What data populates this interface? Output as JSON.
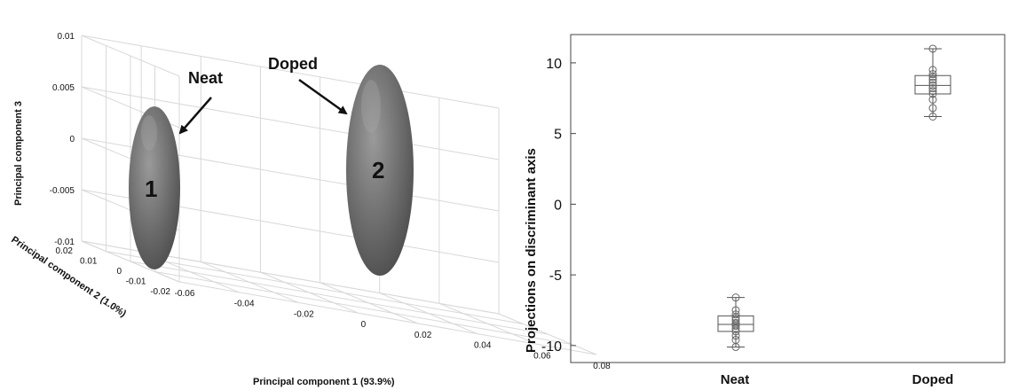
{
  "chart_data": [
    {
      "type": "scatter",
      "subtype": "3d-ellipsoid-pca",
      "xlabel": "Principal component 1 (93.9%)",
      "ylabel": "Principal component 2 (1.0%)",
      "zlabel": "Principal component 3",
      "xticks": [
        "-0.06",
        "-0.04",
        "-0.02",
        "0",
        "0.02",
        "0.04",
        "0.06",
        "0.08"
      ],
      "yticks": [
        "-0.02",
        "-0.01",
        "0",
        "0.01",
        "0.02"
      ],
      "zticks": [
        "-0.01",
        "-0.005",
        "0",
        "0.005",
        "0.01"
      ],
      "xlim": [
        -0.06,
        0.08
      ],
      "ylim": [
        -0.02,
        0.02
      ],
      "zlim": [
        -0.01,
        0.01
      ],
      "grid": true,
      "series": [
        {
          "id": "1",
          "center_x": -0.04,
          "center_y": 0.0,
          "center_z": -0.005
        },
        {
          "id": "2",
          "center_x": 0.055,
          "center_y": 0.0,
          "center_z": -0.003
        }
      ],
      "annotations": [
        {
          "text": "Neat",
          "target": "1"
        },
        {
          "text": "Doped",
          "target": "2"
        }
      ],
      "ellipse_labels": [
        "1",
        "2"
      ]
    },
    {
      "type": "box",
      "ylabel": "Projections on discriminant axis",
      "categories": [
        "Neat",
        "Doped"
      ],
      "ylim": [
        -11.2,
        12
      ],
      "yticks": [
        "-10",
        "-5",
        "0",
        "5",
        "10"
      ],
      "yticks_values": [
        -10,
        -5,
        0,
        5,
        10
      ],
      "boxes": [
        {
          "name": "Neat",
          "min": -10.1,
          "q1": -9.0,
          "median": -8.5,
          "q3": -7.9,
          "max": -6.6,
          "points": [
            -6.6,
            -7.5,
            -7.8,
            -8.0,
            -8.2,
            -8.4,
            -8.5,
            -8.6,
            -8.8,
            -9.0,
            -9.3,
            -9.6,
            -10.1
          ]
        },
        {
          "name": "Doped",
          "min": 6.2,
          "q1": 7.8,
          "median": 8.4,
          "q3": 9.1,
          "max": 11.0,
          "points": [
            6.2,
            6.8,
            7.4,
            7.8,
            8.0,
            8.2,
            8.4,
            8.6,
            8.8,
            9.0,
            9.2,
            9.5,
            11.0
          ]
        }
      ]
    }
  ]
}
